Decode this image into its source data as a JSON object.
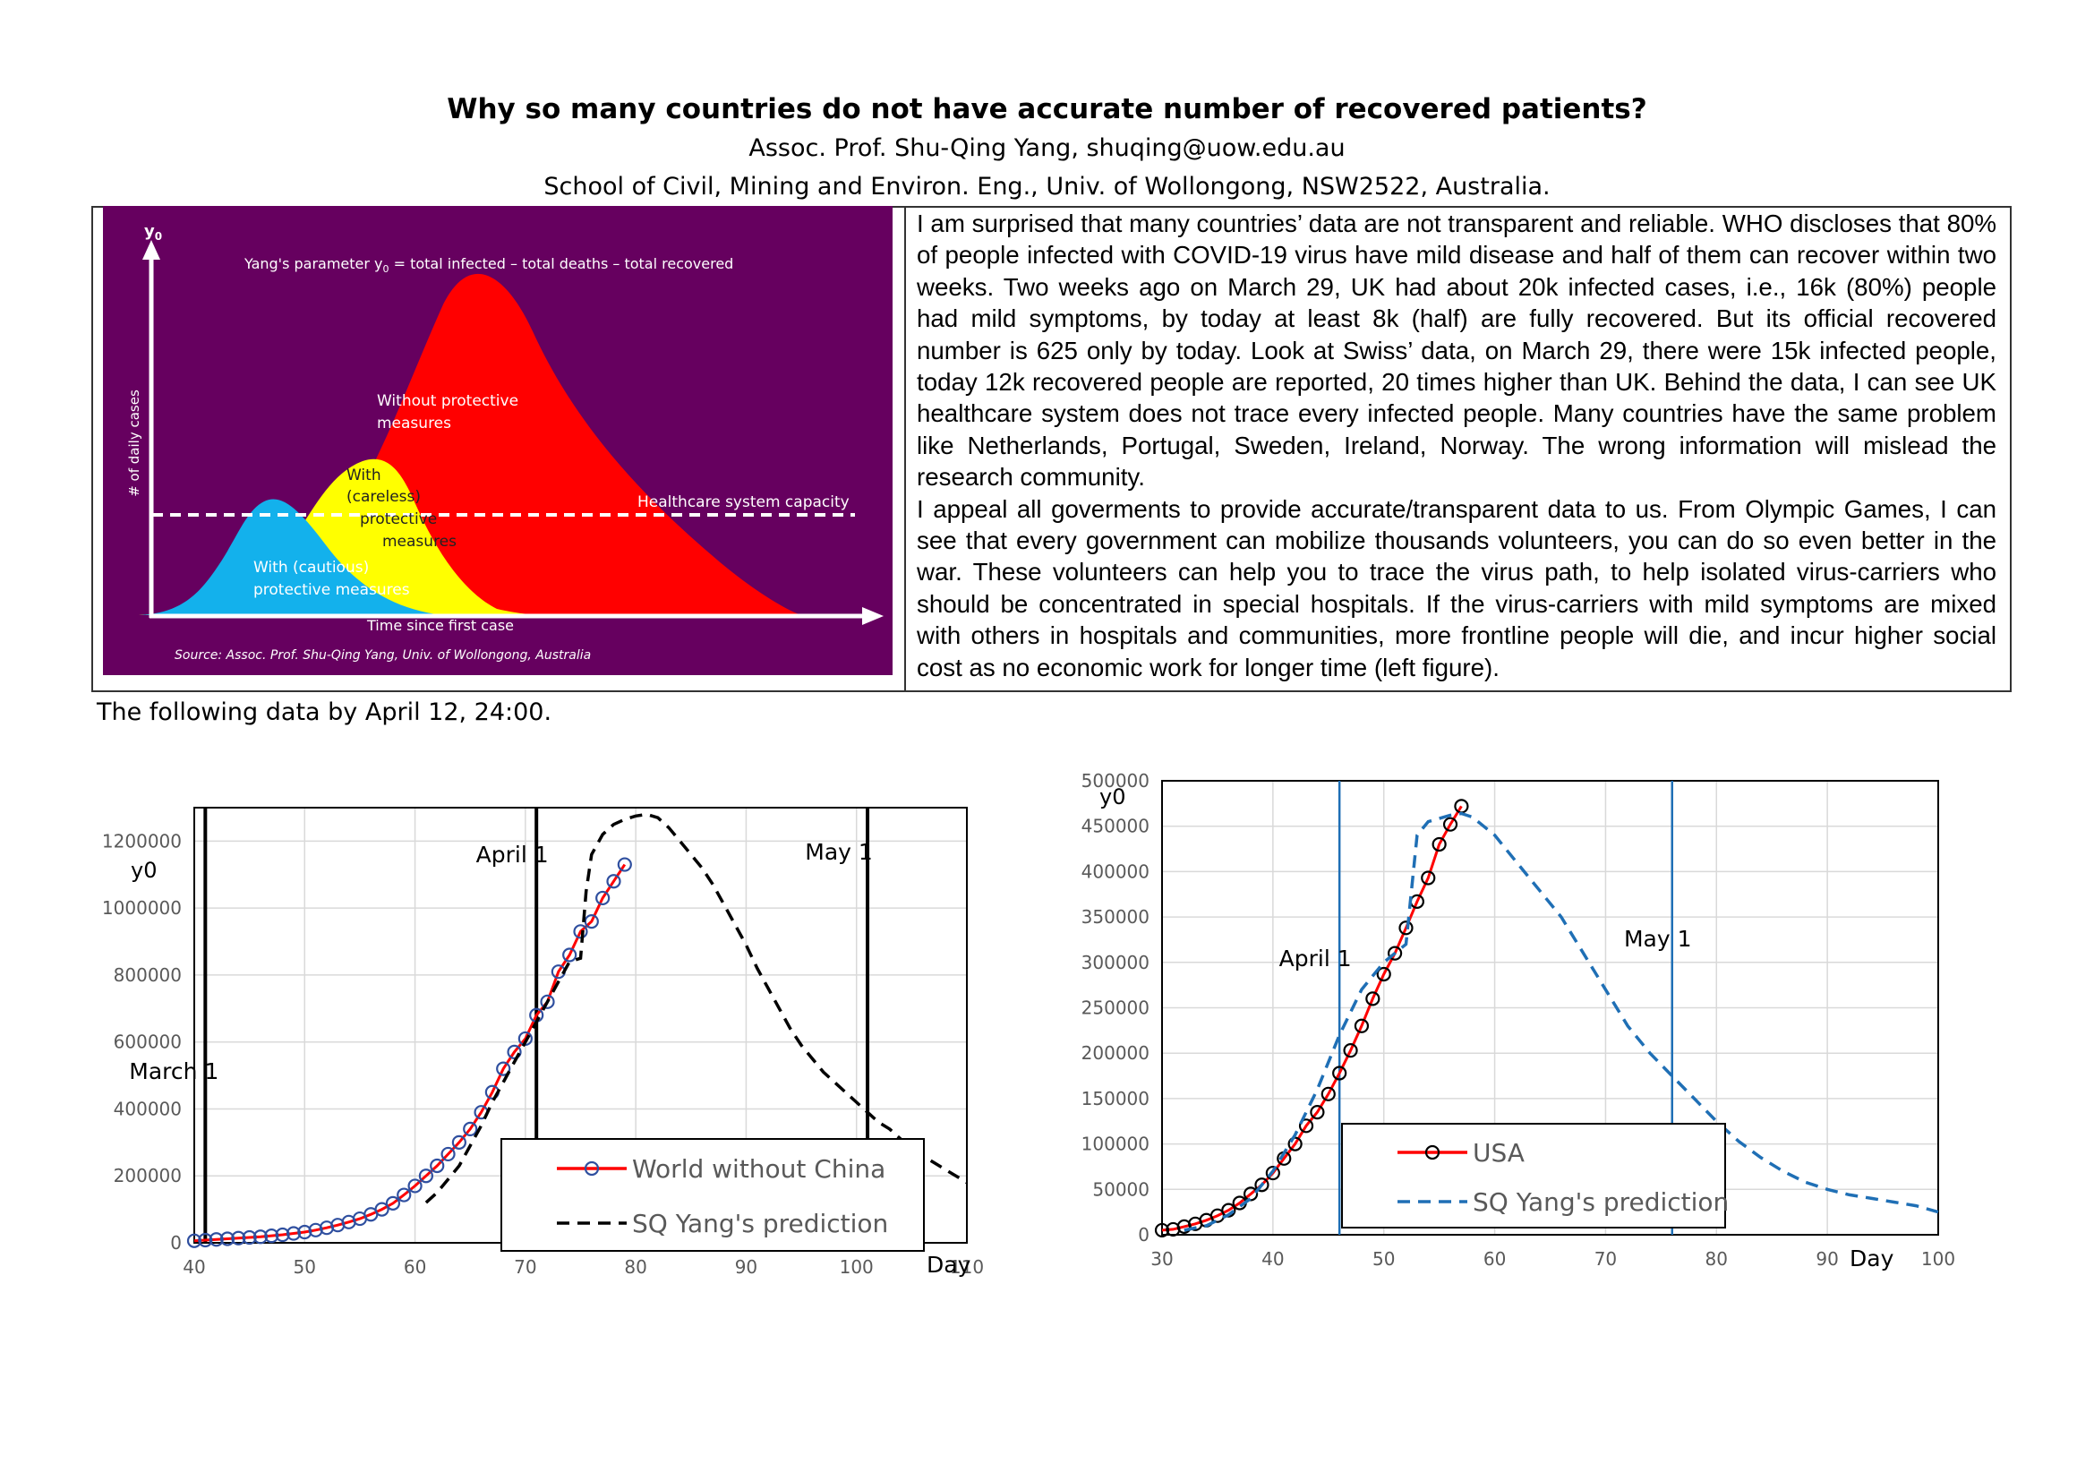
{
  "header": {
    "title": "Why so many countries do not have accurate number of recovered patients?",
    "author": "Assoc. Prof. Shu-Qing Yang, shuqing@uow.edu.au",
    "affiliation": "School of Civil, Mining and Environ. Eng., Univ. of Wollongong, NSW2522, Australia."
  },
  "infographic": {
    "y_axis_symbol": "y",
    "y_axis_subscript": "0",
    "parameter_text": "Yang's parameter y",
    "parameter_sub": "0",
    "parameter_rest": " = total infected – total deaths – total recovered",
    "y_label": "# of daily cases",
    "without_1": "Without protective",
    "without_2": "measures",
    "careless_1": "With",
    "careless_2": "(careless)",
    "careless_3": "protective",
    "careless_4": "measures",
    "cautious_1": "With (cautious)",
    "cautious_2": "protective measures",
    "capacity": "Healthcare system capacity",
    "x_label": "Time since first case",
    "source": "Source: Assoc. Prof. Shu-Qing Yang, Univ. of Wollongong, Australia",
    "colors": {
      "background": "#66005f",
      "red": "#ff0000",
      "yellow": "#ffff00",
      "blue": "#13b1ec",
      "white": "#ffffff"
    }
  },
  "paragraph": {
    "p1": "I am surprised that many countries’ data are not transparent and reliable. WHO discloses that 80% of people infected with COVID-19 virus have mild disease and half of them can recover within two weeks. Two weeks ago on March 29, UK had about 20k infected cases, i.e., 16k (80%) people had mild symptoms, by today at least 8k (half) are fully recovered. But its official recovered number is 625 only by today. Look at Swiss’ data, on March 29, there were 15k infected people, today 12k recovered people are reported, 20 times higher than UK. Behind the data, I can see UK healthcare system does not trace every infected people. Many countries have the same problem like Netherlands, Portugal, Sweden, Ireland, Norway. The wrong information will mislead the research community.",
    "p2": "I appeal all goverments to provide accurate/transparent data to us. From Olympic Games, I can see that every government can mobilize thousands volunteers, you can do so even better in the war. These volunteers can help you to trace the virus path, to help isolated virus-carriers who should be concentrated in special hospitals. If the virus-carriers with mild symptoms are mixed with others in hospitals and communities, more frontline people will die, and incur higher social cost as no economic work for longer time (left figure)."
  },
  "note": "The following data by April 12, 24:00.",
  "chart_data": [
    {
      "type": "line",
      "ylabel": "y0",
      "xlabel": "Day",
      "xlim": [
        40,
        110
      ],
      "ylim": [
        0,
        1300000
      ],
      "xticks": [
        40,
        50,
        60,
        70,
        80,
        90,
        100,
        110
      ],
      "yticks": [
        0,
        200000,
        400000,
        600000,
        800000,
        1000000,
        1200000
      ],
      "grid": true,
      "vlines": [
        {
          "x": 41,
          "label": "March 1"
        },
        {
          "x": 71,
          "label": "April 1"
        },
        {
          "x": 101,
          "label": "May 1"
        }
      ],
      "legend": "bottom-center",
      "series": [
        {
          "name": "World without China",
          "color": "#ff0000",
          "marker_color": "#2f4f9f",
          "x": [
            40,
            41,
            42,
            43,
            44,
            45,
            46,
            47,
            48,
            49,
            50,
            51,
            52,
            53,
            54,
            55,
            56,
            57,
            58,
            59,
            60,
            61,
            62,
            63,
            64,
            65,
            66,
            67,
            68,
            69,
            70,
            71,
            72,
            73,
            74,
            75,
            76,
            77,
            78,
            79
          ],
          "values": [
            6000,
            8000,
            10000,
            12000,
            14000,
            16000,
            18000,
            21000,
            24000,
            28000,
            32000,
            38000,
            45000,
            53000,
            62000,
            72000,
            85000,
            100000,
            118000,
            143000,
            170000,
            200000,
            230000,
            265000,
            300000,
            340000,
            390000,
            450000,
            520000,
            570000,
            610000,
            680000,
            720000,
            810000,
            860000,
            930000,
            960000,
            1030000,
            1080000,
            1130000
          ]
        },
        {
          "name": "SQ Yang's prediction",
          "color": "#000000",
          "dashed": true,
          "x": [
            61,
            62,
            63,
            64,
            65,
            66,
            67,
            68,
            69,
            70,
            71,
            72,
            73,
            74,
            75,
            75.5,
            76,
            77,
            78,
            79,
            80,
            81,
            82,
            83,
            84,
            85,
            86,
            87,
            88,
            89,
            90,
            91,
            92,
            93,
            94,
            95,
            96,
            97,
            98,
            99,
            100,
            101,
            102,
            103,
            104,
            105,
            106,
            107,
            108,
            109,
            110
          ],
          "values": [
            120000,
            150000,
            190000,
            230000,
            290000,
            350000,
            420000,
            480000,
            540000,
            600000,
            660000,
            720000,
            780000,
            840000,
            850000,
            1050000,
            1160000,
            1220000,
            1250000,
            1265000,
            1275000,
            1280000,
            1270000,
            1240000,
            1200000,
            1160000,
            1120000,
            1070000,
            1010000,
            950000,
            890000,
            820000,
            760000,
            700000,
            640000,
            590000,
            550000,
            510000,
            480000,
            450000,
            420000,
            390000,
            360000,
            340000,
            310000,
            280000,
            260000,
            240000,
            220000,
            200000,
            180000
          ]
        }
      ]
    },
    {
      "type": "line",
      "ylabel": "y0",
      "xlabel": "Day",
      "xlim": [
        30,
        100
      ],
      "ylim": [
        0,
        500000
      ],
      "xticks": [
        30,
        40,
        50,
        60,
        70,
        80,
        90,
        100
      ],
      "yticks": [
        0,
        50000,
        100000,
        150000,
        200000,
        250000,
        300000,
        350000,
        400000,
        450000,
        500000
      ],
      "grid": true,
      "vlines": [
        {
          "x": 46,
          "label": "April 1"
        },
        {
          "x": 76,
          "label": "May 1"
        }
      ],
      "legend": "bottom-center",
      "series": [
        {
          "name": "USA",
          "color": "#ff0000",
          "marker_color": "#000000",
          "x": [
            30,
            31,
            32,
            33,
            34,
            35,
            36,
            37,
            38,
            39,
            40,
            41,
            42,
            43,
            44,
            45,
            46,
            47,
            48,
            49,
            50,
            51,
            52,
            53,
            54,
            55,
            56,
            57
          ],
          "values": [
            5000,
            6000,
            9000,
            12000,
            16000,
            21000,
            27000,
            35000,
            45000,
            55000,
            68000,
            84000,
            100000,
            120000,
            135000,
            155000,
            178000,
            203000,
            230000,
            260000,
            287000,
            310000,
            338000,
            367000,
            393000,
            430000,
            452000,
            472000
          ]
        },
        {
          "name": "SQ Yang's prediction",
          "color": "#1f6fb5",
          "dashed": true,
          "x": [
            32,
            34,
            36,
            38,
            40,
            42,
            44,
            46,
            48,
            50,
            52,
            52.5,
            53,
            54,
            56,
            57,
            58,
            60,
            62,
            64,
            66,
            68,
            70,
            72,
            74,
            76,
            78,
            80,
            82,
            84,
            86,
            88,
            90,
            92,
            94,
            96,
            98,
            100
          ],
          "values": [
            5000,
            10000,
            22000,
            40000,
            70000,
            110000,
            160000,
            220000,
            270000,
            300000,
            320000,
            380000,
            440000,
            455000,
            462000,
            464000,
            460000,
            440000,
            410000,
            380000,
            350000,
            310000,
            270000,
            230000,
            200000,
            175000,
            150000,
            125000,
            103000,
            85000,
            70000,
            58000,
            50000,
            44000,
            40000,
            36000,
            32000,
            25000
          ]
        }
      ]
    }
  ]
}
